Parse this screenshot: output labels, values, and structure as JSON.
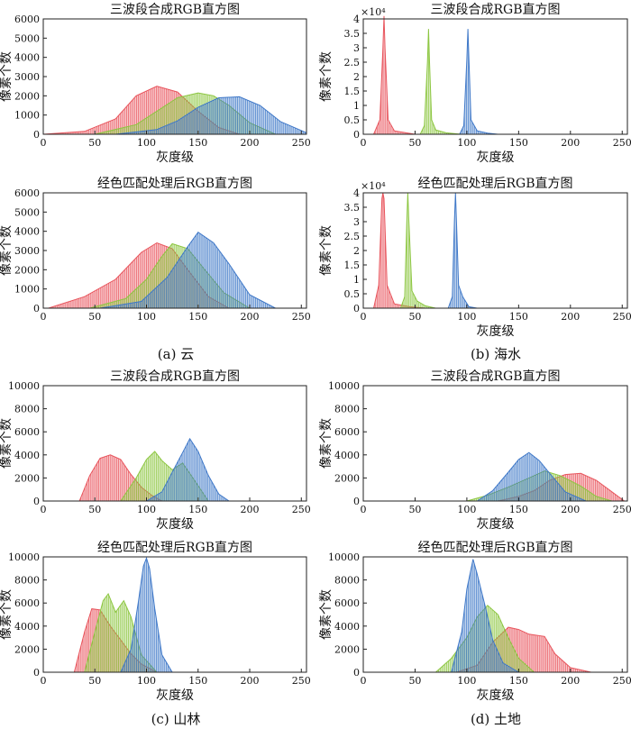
{
  "figure": {
    "captions": [
      "(a) 云",
      "(b) 海水",
      "(c) 山林",
      "(d) 土地"
    ]
  },
  "colors": {
    "red": "#e8545c",
    "green": "#8cc640",
    "blue": "#3f78c8"
  },
  "chart_data": [
    {
      "type": "area",
      "panel": "a-top",
      "title": "三波段合成RGB直方图",
      "xlabel": "灰度级",
      "ylabel": "像素个数",
      "xlim": [
        0,
        255
      ],
      "ylim": [
        0,
        6000
      ],
      "xticks": [
        0,
        50,
        100,
        150,
        200,
        250
      ],
      "yticks": [
        0,
        1000,
        2000,
        3000,
        4000,
        5000,
        6000
      ],
      "yexp": "",
      "series": [
        {
          "color": "red",
          "x": [
            0,
            40,
            70,
            90,
            110,
            130,
            150,
            170,
            190
          ],
          "y": [
            0,
            150,
            800,
            2000,
            2500,
            2200,
            1200,
            350,
            0
          ]
        },
        {
          "color": "green",
          "x": [
            50,
            90,
            110,
            130,
            150,
            165,
            180,
            200,
            225
          ],
          "y": [
            0,
            500,
            1200,
            1900,
            2150,
            2000,
            1500,
            600,
            0
          ]
        },
        {
          "color": "blue",
          "x": [
            70,
            110,
            130,
            150,
            170,
            190,
            210,
            230,
            255
          ],
          "y": [
            0,
            250,
            700,
            1400,
            1900,
            1950,
            1500,
            650,
            80
          ]
        }
      ]
    },
    {
      "type": "area",
      "panel": "b-top",
      "title": "三波段合成RGB直方图",
      "xlabel": "灰度级",
      "ylabel": "像素个数",
      "xlim": [
        0,
        255
      ],
      "ylim": [
        0,
        4
      ],
      "xticks": [
        0,
        50,
        100,
        150,
        200,
        250
      ],
      "yticks": [
        0,
        0.5,
        1,
        1.5,
        2,
        2.5,
        3,
        3.5,
        4
      ],
      "yexp": "×10⁴",
      "series": [
        {
          "color": "red",
          "x": [
            10,
            16,
            19,
            20,
            21,
            24,
            30,
            40,
            50
          ],
          "y": [
            0,
            0.5,
            3,
            4.1,
            3,
            0.5,
            0.12,
            0.06,
            0
          ]
        },
        {
          "color": "green",
          "x": [
            55,
            59,
            62,
            63,
            64,
            66,
            70,
            80,
            95
          ],
          "y": [
            0,
            0.3,
            2.5,
            3.65,
            2.5,
            0.5,
            0.15,
            0.05,
            0
          ]
        },
        {
          "color": "blue",
          "x": [
            93,
            97,
            100,
            101,
            102,
            104,
            110,
            120,
            130
          ],
          "y": [
            0,
            0.3,
            2.6,
            3.65,
            2.6,
            0.5,
            0.12,
            0.04,
            0
          ]
        }
      ]
    },
    {
      "type": "area",
      "panel": "a-bottom",
      "title": "经色匹配处理后RGB直方图",
      "xlabel": "",
      "ylabel": "像素个数",
      "xlim": [
        0,
        255
      ],
      "ylim": [
        0,
        6000
      ],
      "xticks": [
        0,
        50,
        100,
        150,
        200,
        250
      ],
      "yticks": [
        0,
        1000,
        2000,
        3000,
        4000,
        5000,
        6000
      ],
      "yexp": "",
      "series": [
        {
          "color": "red",
          "x": [
            5,
            40,
            70,
            95,
            110,
            125,
            140,
            160,
            180
          ],
          "y": [
            0,
            600,
            1500,
            2900,
            3400,
            3100,
            2000,
            600,
            0
          ]
        },
        {
          "color": "green",
          "x": [
            45,
            80,
            100,
            115,
            125,
            140,
            155,
            175,
            200
          ],
          "y": [
            0,
            500,
            1500,
            2700,
            3350,
            3100,
            2100,
            800,
            0
          ]
        },
        {
          "color": "blue",
          "x": [
            55,
            95,
            120,
            140,
            150,
            165,
            180,
            200,
            225
          ],
          "y": [
            0,
            350,
            1600,
            3200,
            3950,
            3400,
            2300,
            700,
            0
          ]
        }
      ]
    },
    {
      "type": "area",
      "panel": "b-bottom",
      "title": "经色匹配处理后RGB直方图",
      "xlabel": "灰度级",
      "ylabel": "像素个数",
      "xlim": [
        0,
        255
      ],
      "ylim": [
        0,
        4
      ],
      "xticks": [
        0,
        50,
        100,
        150,
        200,
        250
      ],
      "yticks": [
        0,
        0.5,
        1,
        1.5,
        2,
        2.5,
        3,
        3.5,
        4
      ],
      "yexp": "×10⁴",
      "series": [
        {
          "color": "red",
          "x": [
            10,
            15,
            18,
            19,
            20,
            23,
            30,
            45,
            60
          ],
          "y": [
            0,
            0.8,
            3.8,
            4.0,
            3.8,
            0.8,
            0.15,
            0.05,
            0
          ]
        },
        {
          "color": "green",
          "x": [
            36,
            40,
            42,
            43,
            44,
            47,
            52,
            60,
            70
          ],
          "y": [
            0,
            0.4,
            3.0,
            4.0,
            3.0,
            0.6,
            0.25,
            0.08,
            0
          ]
        },
        {
          "color": "blue",
          "x": [
            82,
            86,
            88,
            89,
            90,
            92,
            96,
            102,
            110
          ],
          "y": [
            0,
            0.4,
            3.0,
            4.0,
            3.0,
            0.8,
            0.4,
            0.05,
            0
          ]
        }
      ]
    },
    {
      "type": "area",
      "panel": "c-top",
      "title": "三波段合成RGB直方图",
      "xlabel": "灰度级",
      "ylabel": "像素个数",
      "xlim": [
        0,
        255
      ],
      "ylim": [
        0,
        10000
      ],
      "xticks": [
        0,
        50,
        100,
        150,
        200,
        250
      ],
      "yticks": [
        0,
        2000,
        4000,
        6000,
        8000,
        10000
      ],
      "yexp": "",
      "series": [
        {
          "color": "red",
          "x": [
            35,
            45,
            55,
            65,
            75,
            85,
            95,
            105,
            115
          ],
          "y": [
            0,
            2200,
            3700,
            4000,
            3600,
            2300,
            1200,
            500,
            0
          ]
        },
        {
          "color": "green",
          "x": [
            75,
            90,
            100,
            108,
            115,
            125,
            135,
            145,
            160
          ],
          "y": [
            0,
            2000,
            3600,
            4300,
            3500,
            2700,
            3300,
            2000,
            0
          ]
        },
        {
          "color": "blue",
          "x": [
            100,
            115,
            125,
            135,
            142,
            150,
            160,
            170,
            180
          ],
          "y": [
            0,
            800,
            2500,
            4200,
            5400,
            4300,
            2200,
            600,
            0
          ]
        }
      ]
    },
    {
      "type": "area",
      "panel": "d-top",
      "title": "三波段合成RGB直方图",
      "xlabel": "灰度级",
      "ylabel": "像素个数",
      "xlim": [
        0,
        255
      ],
      "ylim": [
        0,
        10000
      ],
      "xticks": [
        0,
        50,
        100,
        150,
        200,
        250
      ],
      "yticks": [
        0,
        2000,
        4000,
        6000,
        8000,
        10000
      ],
      "yexp": "",
      "series": [
        {
          "color": "red",
          "x": [
            130,
            150,
            165,
            180,
            195,
            210,
            225,
            240,
            252
          ],
          "y": [
            0,
            400,
            900,
            1800,
            2300,
            2400,
            1800,
            800,
            0
          ]
        },
        {
          "color": "green",
          "x": [
            100,
            120,
            140,
            160,
            175,
            190,
            210,
            225,
            240
          ],
          "y": [
            0,
            500,
            1200,
            2000,
            2600,
            2200,
            1300,
            400,
            0
          ]
        },
        {
          "color": "blue",
          "x": [
            110,
            125,
            140,
            150,
            160,
            170,
            180,
            195,
            215
          ],
          "y": [
            0,
            900,
            2500,
            3600,
            4200,
            3500,
            2400,
            800,
            0
          ]
        }
      ]
    },
    {
      "type": "area",
      "panel": "c-bottom",
      "title": "经色匹配处理后RGB直方图",
      "xlabel": "灰度级",
      "ylabel": "像素个数",
      "xlim": [
        0,
        255
      ],
      "ylim": [
        0,
        10000
      ],
      "xticks": [
        0,
        50,
        100,
        150,
        200,
        250
      ],
      "yticks": [
        0,
        2000,
        4000,
        6000,
        8000,
        10000
      ],
      "yexp": "",
      "series": [
        {
          "color": "red",
          "x": [
            30,
            40,
            47,
            55,
            65,
            75,
            85,
            95,
            110
          ],
          "y": [
            0,
            3500,
            5500,
            5400,
            4000,
            2800,
            1600,
            700,
            0
          ]
        },
        {
          "color": "green",
          "x": [
            40,
            50,
            58,
            63,
            70,
            78,
            85,
            95,
            110
          ],
          "y": [
            0,
            3500,
            6200,
            6800,
            5200,
            6200,
            4800,
            1500,
            0
          ]
        },
        {
          "color": "blue",
          "x": [
            75,
            85,
            92,
            97,
            100,
            103,
            108,
            115,
            125
          ],
          "y": [
            0,
            2000,
            6000,
            9200,
            9900,
            9000,
            5500,
            1500,
            0
          ]
        }
      ]
    },
    {
      "type": "area",
      "panel": "d-bottom",
      "title": "经色匹配处理后RGB直方图",
      "xlabel": "灰度级",
      "ylabel": "像素个数",
      "xlim": [
        0,
        255
      ],
      "ylim": [
        0,
        10000
      ],
      "xticks": [
        0,
        50,
        100,
        150,
        200,
        250
      ],
      "yticks": [
        0,
        2000,
        4000,
        6000,
        8000,
        10000
      ],
      "yexp": "",
      "series": [
        {
          "color": "red",
          "x": [
            90,
            110,
            125,
            140,
            150,
            160,
            175,
            185,
            200,
            220
          ],
          "y": [
            0,
            600,
            2600,
            3900,
            3700,
            3300,
            3100,
            1600,
            400,
            0
          ]
        },
        {
          "color": "green",
          "x": [
            70,
            85,
            100,
            110,
            120,
            130,
            140,
            150,
            165
          ],
          "y": [
            0,
            1200,
            3000,
            4800,
            5800,
            5000,
            3000,
            1200,
            0
          ]
        },
        {
          "color": "blue",
          "x": [
            85,
            95,
            100,
            106,
            110,
            118,
            125,
            135,
            150
          ],
          "y": [
            0,
            3500,
            7200,
            9800,
            8500,
            5600,
            2800,
            800,
            0
          ]
        }
      ]
    }
  ]
}
